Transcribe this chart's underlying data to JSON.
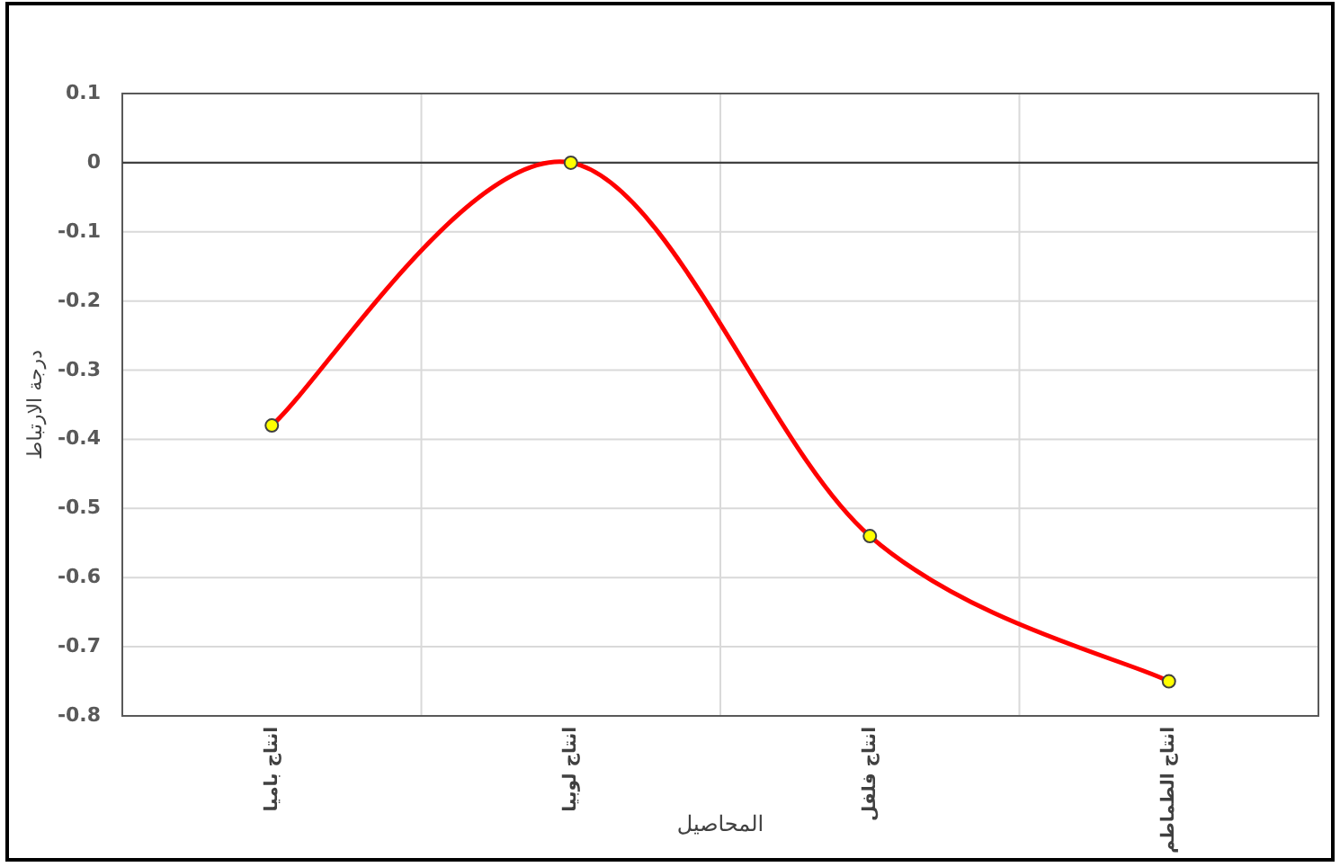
{
  "chart_data": {
    "type": "line",
    "xlabel": "المحاصيل",
    "ylabel": "درجة الارتباط",
    "categories": [
      "انتاج باميا",
      "انتاج لوبيا",
      "انتاج فلفل",
      "انتاج الطماطم"
    ],
    "series": [
      {
        "color": "#ff0000",
        "values": [
          -0.38,
          0.0,
          -0.54,
          -0.75
        ]
      }
    ],
    "marker": "circle",
    "line_style": "solid",
    "grid": true,
    "ylim": [
      -0.8,
      0.1
    ],
    "yticks": [
      {
        "value": 0.1,
        "label": "0.1"
      },
      {
        "value": 0,
        "label": "0"
      },
      {
        "value": -0.1,
        "label": "-0.1"
      },
      {
        "value": -0.2,
        "label": "-0.2"
      },
      {
        "value": -0.3,
        "label": "-0.3"
      },
      {
        "value": -0.4,
        "label": "-0.4"
      },
      {
        "value": -0.5,
        "label": "-0.5"
      },
      {
        "value": -0.6,
        "label": "-0.6"
      },
      {
        "value": -0.7,
        "label": "-0.7"
      },
      {
        "value": -0.8,
        "label": "-0.8"
      }
    ],
    "ref_lines": [
      {
        "axis": "y",
        "value": 0,
        "color": "#404040"
      }
    ]
  }
}
